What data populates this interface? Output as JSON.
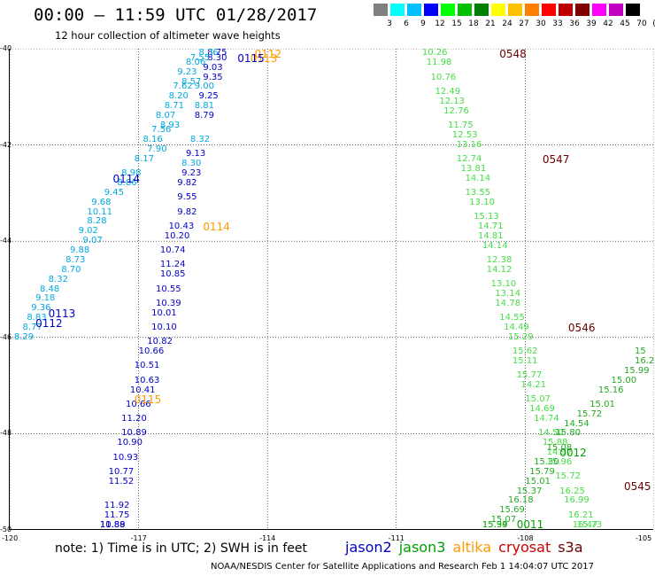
{
  "title": "00:00 – 11:59 UTC 01/28/2017",
  "subtitle": "12 hour collection of altimeter wave heights",
  "scale": {
    "labels": [
      "3",
      "6",
      "9",
      "12",
      "15",
      "18",
      "21",
      "24",
      "27",
      "30",
      "33",
      "36",
      "39",
      "42",
      "45",
      "70",
      "(ft)"
    ],
    "colors": [
      "#808080",
      "#00ffff",
      "#00bfff",
      "#0000ff",
      "#00ff00",
      "#00c000",
      "#008000",
      "#ffff00",
      "#ffc000",
      "#ff8000",
      "#ff0000",
      "#c00000",
      "#800000",
      "#ff00ff",
      "#c000c0",
      "#000000"
    ]
  },
  "axes": {
    "lat_labels": [
      "-40",
      "-42",
      "-44",
      "-46",
      "-48",
      "-50"
    ],
    "lon_labels": [
      "-120",
      "-117",
      "-114",
      "-111",
      "-108",
      "-105"
    ],
    "lat_range": [
      -50,
      -40
    ],
    "lon_range": [
      -120,
      -105
    ]
  },
  "note": "note: 1) Time is in UTC; 2) SWH is in feet",
  "legend": [
    {
      "name": "jason2",
      "color": "#0000cc"
    },
    {
      "name": "jason3",
      "color": "#00a000"
    },
    {
      "name": "altika",
      "color": "#ff9900"
    },
    {
      "name": "cryosat",
      "color": "#cc0000"
    },
    {
      "name": "s3a",
      "color": "#660000"
    }
  ],
  "credit": "NOAA/NESDIS Center for Satellite Applications and Research   Feb  1 14:04:07 UTC 2017",
  "chart_data": {
    "type": "scatter",
    "x_label": "longitude",
    "y_label": "latitude",
    "pass_labels": [
      {
        "text": "0112",
        "lon": -114.3,
        "lat": -40.0,
        "color": "#ff9900"
      },
      {
        "text": "0113",
        "lon": -114.4,
        "lat": -40.2,
        "color": "#ff9900"
      },
      {
        "text": "0115",
        "lon": -114.7,
        "lat": -40.2,
        "color": "#0000cc"
      },
      {
        "text": "0114",
        "lon": -117.6,
        "lat": -42.7,
        "color": "#0000cc"
      },
      {
        "text": "0114",
        "lon": -115.5,
        "lat": -43.7,
        "color": "#ff9900"
      },
      {
        "text": "0113",
        "lon": -119.1,
        "lat": -45.5,
        "color": "#0000cc"
      },
      {
        "text": "0112",
        "lon": -119.4,
        "lat": -45.7,
        "color": "#0000cc"
      },
      {
        "text": "0115",
        "lon": -117.1,
        "lat": -47.3,
        "color": "#ff9900"
      },
      {
        "text": "0548",
        "lon": -108.6,
        "lat": -40.1,
        "color": "#660000"
      },
      {
        "text": "0547",
        "lon": -107.6,
        "lat": -42.3,
        "color": "#660000"
      },
      {
        "text": "0546",
        "lon": -107.0,
        "lat": -45.8,
        "color": "#660000"
      },
      {
        "text": "0545",
        "lon": -105.5,
        "lat": -49.1,
        "color": "#660000"
      },
      {
        "text": "0012",
        "lon": -107.2,
        "lat": -48.4,
        "color": "#00a000"
      },
      {
        "text": "0011",
        "lon": -108.2,
        "lat": -49.9,
        "color": "#00a000"
      }
    ],
    "series": [
      {
        "name": "jason2 pass 0115",
        "color": "#0000cc",
        "points": [
          {
            "v": "8.75",
            "lon": -115.4,
            "lat": -40.0
          },
          {
            "v": "8.30",
            "lon": -115.4,
            "lat": -40.2
          },
          {
            "v": "9.03",
            "lon": -115.5,
            "lat": -40.4
          },
          {
            "v": "9.35",
            "lon": -115.5,
            "lat": -40.6
          },
          {
            "v": "9.25",
            "lon": -115.6,
            "lat": -41.0
          },
          {
            "v": "8.79",
            "lon": -115.7,
            "lat": -41.4
          },
          {
            "v": "9.13",
            "lon": -115.9,
            "lat": -42.2
          },
          {
            "v": "9.23",
            "lon": -116.0,
            "lat": -42.6
          },
          {
            "v": "9.82",
            "lon": -116.1,
            "lat": -42.8
          },
          {
            "v": "9.55",
            "lon": -116.1,
            "lat": -43.1
          },
          {
            "v": "9.82",
            "lon": -116.1,
            "lat": -43.4
          },
          {
            "v": "10.43",
            "lon": -116.3,
            "lat": -43.7
          },
          {
            "v": "10.20",
            "lon": -116.4,
            "lat": -43.9
          },
          {
            "v": "10.74",
            "lon": -116.5,
            "lat": -44.2
          },
          {
            "v": "11.24",
            "lon": -116.5,
            "lat": -44.5
          },
          {
            "v": "10.85",
            "lon": -116.5,
            "lat": -44.7
          },
          {
            "v": "10.55",
            "lon": -116.6,
            "lat": -45.0
          },
          {
            "v": "10.39",
            "lon": -116.6,
            "lat": -45.3
          },
          {
            "v": "10.01",
            "lon": -116.7,
            "lat": -45.5
          },
          {
            "v": "10.10",
            "lon": -116.7,
            "lat": -45.8
          },
          {
            "v": "10.82",
            "lon": -116.8,
            "lat": -46.1
          },
          {
            "v": "10.66",
            "lon": -117.0,
            "lat": -46.3
          },
          {
            "v": "10.51",
            "lon": -117.1,
            "lat": -46.6
          },
          {
            "v": "10.63",
            "lon": -117.1,
            "lat": -46.9
          },
          {
            "v": "10.41",
            "lon": -117.2,
            "lat": -47.1
          },
          {
            "v": "10.66",
            "lon": -117.3,
            "lat": -47.4
          },
          {
            "v": "11.20",
            "lon": -117.4,
            "lat": -47.7
          },
          {
            "v": "10.89",
            "lon": -117.4,
            "lat": -48.0
          },
          {
            "v": "10.90",
            "lon": -117.5,
            "lat": -48.2
          },
          {
            "v": "10.93",
            "lon": -117.6,
            "lat": -48.5
          },
          {
            "v": "10.77",
            "lon": -117.7,
            "lat": -48.8
          },
          {
            "v": "11.52",
            "lon": -117.7,
            "lat": -49.0
          },
          {
            "v": "11.92",
            "lon": -117.8,
            "lat": -49.5
          },
          {
            "v": "11.75",
            "lon": -117.8,
            "lat": -49.7
          },
          {
            "v": "10.89",
            "lon": -117.9,
            "lat": -50.0
          },
          {
            "v": "11.88",
            "lon": -117.9,
            "lat": -50.3
          }
        ]
      },
      {
        "name": "altika pass 0113",
        "color": "#00a8e0",
        "points": [
          {
            "v": "8.36",
            "lon": -115.6,
            "lat": -40.0
          },
          {
            "v": "7.55",
            "lon": -115.8,
            "lat": -40.2
          },
          {
            "v": "8.06",
            "lon": -115.9,
            "lat": -40.3
          },
          {
            "v": "9.23",
            "lon": -116.1,
            "lat": -40.5
          },
          {
            "v": "8.57",
            "lon": -116.0,
            "lat": -40.7
          },
          {
            "v": "7.62",
            "lon": -116.2,
            "lat": -40.8
          },
          {
            "v": "9.00",
            "lon": -115.7,
            "lat": -40.8
          },
          {
            "v": "8.20",
            "lon": -116.3,
            "lat": -41.0
          },
          {
            "v": "8.71",
            "lon": -116.4,
            "lat": -41.2
          },
          {
            "v": "8.81",
            "lon": -115.7,
            "lat": -41.2
          },
          {
            "v": "8.07",
            "lon": -116.6,
            "lat": -41.4
          },
          {
            "v": "8.93",
            "lon": -116.5,
            "lat": -41.6
          },
          {
            "v": "7.56",
            "lon": -116.7,
            "lat": -41.7
          },
          {
            "v": "8.32",
            "lon": -115.8,
            "lat": -41.9
          },
          {
            "v": "8.16",
            "lon": -116.9,
            "lat": -41.9
          },
          {
            "v": "7.90",
            "lon": -116.8,
            "lat": -42.1
          },
          {
            "v": "8.17",
            "lon": -117.1,
            "lat": -42.3
          },
          {
            "v": "8.30",
            "lon": -116.0,
            "lat": -42.4
          },
          {
            "v": "8.98",
            "lon": -117.4,
            "lat": -42.6
          },
          {
            "v": "8.86",
            "lon": -117.5,
            "lat": -42.8
          },
          {
            "v": "9.45",
            "lon": -117.8,
            "lat": -43.0
          },
          {
            "v": "9.68",
            "lon": -118.1,
            "lat": -43.2
          },
          {
            "v": "10.11",
            "lon": -118.2,
            "lat": -43.4
          },
          {
            "v": "8.28",
            "lon": -118.2,
            "lat": -43.6
          },
          {
            "v": "9.02",
            "lon": -118.4,
            "lat": -43.8
          },
          {
            "v": "9.07",
            "lon": -118.3,
            "lat": -44.0
          },
          {
            "v": "9.88",
            "lon": -118.6,
            "lat": -44.2
          },
          {
            "v": "8.73",
            "lon": -118.7,
            "lat": -44.4
          },
          {
            "v": "8.70",
            "lon": -118.8,
            "lat": -44.6
          },
          {
            "v": "8.32",
            "lon": -119.1,
            "lat": -44.8
          },
          {
            "v": "8.48",
            "lon": -119.3,
            "lat": -45.0
          },
          {
            "v": "9.18",
            "lon": -119.4,
            "lat": -45.2
          },
          {
            "v": "9.36",
            "lon": -119.5,
            "lat": -45.4
          },
          {
            "v": "8.83",
            "lon": -119.6,
            "lat": -45.6
          },
          {
            "v": "8.77",
            "lon": -119.7,
            "lat": -45.8
          },
          {
            "v": "8.29",
            "lon": -119.9,
            "lat": -46.0
          }
        ]
      },
      {
        "name": "jason3 pass 0012",
        "color": "#44dd44",
        "points": [
          {
            "v": "10.26",
            "lon": -110.4,
            "lat": -40.1
          },
          {
            "v": "11.98",
            "lon": -110.3,
            "lat": -40.3
          },
          {
            "v": "10.76",
            "lon": -110.2,
            "lat": -40.6
          },
          {
            "v": "12.49",
            "lon": -110.1,
            "lat": -40.9
          },
          {
            "v": "12.13",
            "lon": -110.0,
            "lat": -41.1
          },
          {
            "v": "12.76",
            "lon": -109.9,
            "lat": -41.3
          },
          {
            "v": "11.75",
            "lon": -109.8,
            "lat": -41.6
          },
          {
            "v": "12.53",
            "lon": -109.7,
            "lat": -41.8
          },
          {
            "v": "13.16",
            "lon": -109.6,
            "lat": -42.0
          },
          {
            "v": "12.74",
            "lon": -109.6,
            "lat": -42.3
          },
          {
            "v": "13.81",
            "lon": -109.5,
            "lat": -42.5
          },
          {
            "v": "14.14",
            "lon": -109.4,
            "lat": -42.7
          },
          {
            "v": "13.55",
            "lon": -109.4,
            "lat": -43.0
          },
          {
            "v": "13.10",
            "lon": -109.3,
            "lat": -43.2
          },
          {
            "v": "15.13",
            "lon": -109.2,
            "lat": -43.5
          },
          {
            "v": "14.71",
            "lon": -109.1,
            "lat": -43.7
          },
          {
            "v": "14.81",
            "lon": -109.1,
            "lat": -43.9
          },
          {
            "v": "14.14",
            "lon": -109.0,
            "lat": -44.1
          },
          {
            "v": "12.38",
            "lon": -108.9,
            "lat": -44.4
          },
          {
            "v": "14.12",
            "lon": -108.9,
            "lat": -44.6
          },
          {
            "v": "13.10",
            "lon": -108.8,
            "lat": -44.9
          },
          {
            "v": "13.14",
            "lon": -108.7,
            "lat": -45.1
          },
          {
            "v": "14.78",
            "lon": -108.7,
            "lat": -45.3
          },
          {
            "v": "14.55",
            "lon": -108.6,
            "lat": -45.6
          },
          {
            "v": "14.49",
            "lon": -108.5,
            "lat": -45.8
          },
          {
            "v": "15.29",
            "lon": -108.4,
            "lat": -46.0
          },
          {
            "v": "15.62",
            "lon": -108.3,
            "lat": -46.3
          },
          {
            "v": "15.11",
            "lon": -108.3,
            "lat": -46.5
          },
          {
            "v": "15.77",
            "lon": -108.2,
            "lat": -46.8
          },
          {
            "v": "14.21",
            "lon": -108.1,
            "lat": -47.0
          },
          {
            "v": "15.07",
            "lon": -108.0,
            "lat": -47.3
          },
          {
            "v": "14.69",
            "lon": -107.9,
            "lat": -47.5
          },
          {
            "v": "14.74",
            "lon": -107.8,
            "lat": -47.7
          },
          {
            "v": "14.50",
            "lon": -107.7,
            "lat": -48.0
          },
          {
            "v": "15.88",
            "lon": -107.6,
            "lat": -48.2
          },
          {
            "v": "14.97",
            "lon": -107.5,
            "lat": -48.4
          },
          {
            "v": "15.96",
            "lon": -107.5,
            "lat": -48.6
          },
          {
            "v": "15.72",
            "lon": -107.3,
            "lat": -48.9
          },
          {
            "v": "16.25",
            "lon": -107.2,
            "lat": -49.2
          },
          {
            "v": "16.99",
            "lon": -107.1,
            "lat": -49.4
          },
          {
            "v": "16.21",
            "lon": -107.0,
            "lat": -49.7
          },
          {
            "v": "16.47",
            "lon": -106.9,
            "lat": -49.9
          },
          {
            "v": "15.73",
            "lon": -106.8,
            "lat": -50.2
          }
        ]
      },
      {
        "name": "jason3 pass 0011",
        "color": "#22aa22",
        "points": [
          {
            "v": "15.94",
            "lon": -109.0,
            "lat": -50.2
          },
          {
            "v": "15.39",
            "lon": -109.0,
            "lat": -50.0
          },
          {
            "v": "15.07",
            "lon": -108.8,
            "lat": -49.8
          },
          {
            "v": "15.69",
            "lon": -108.6,
            "lat": -49.6
          },
          {
            "v": "16.18",
            "lon": -108.4,
            "lat": -49.4
          },
          {
            "v": "15.37",
            "lon": -108.2,
            "lat": -49.2
          },
          {
            "v": "15.01",
            "lon": -108.0,
            "lat": -49.0
          },
          {
            "v": "15.79",
            "lon": -107.9,
            "lat": -48.8
          },
          {
            "v": "15.30",
            "lon": -107.8,
            "lat": -48.6
          },
          {
            "v": "15.08",
            "lon": -107.5,
            "lat": -48.3
          },
          {
            "v": "15.80",
            "lon": -107.3,
            "lat": -48.0
          },
          {
            "v": "14.54",
            "lon": -107.1,
            "lat": -47.8
          },
          {
            "v": "15.72",
            "lon": -106.8,
            "lat": -47.6
          },
          {
            "v": "15.01",
            "lon": -106.5,
            "lat": -47.4
          },
          {
            "v": "15.16",
            "lon": -106.3,
            "lat": -47.1
          },
          {
            "v": "15.00",
            "lon": -106.0,
            "lat": -46.9
          },
          {
            "v": "15.99",
            "lon": -105.7,
            "lat": -46.7
          },
          {
            "v": "16.2",
            "lon": -105.4,
            "lat": -46.5
          },
          {
            "v": "15",
            "lon": -105.1,
            "lat": -46.3
          }
        ]
      }
    ]
  }
}
